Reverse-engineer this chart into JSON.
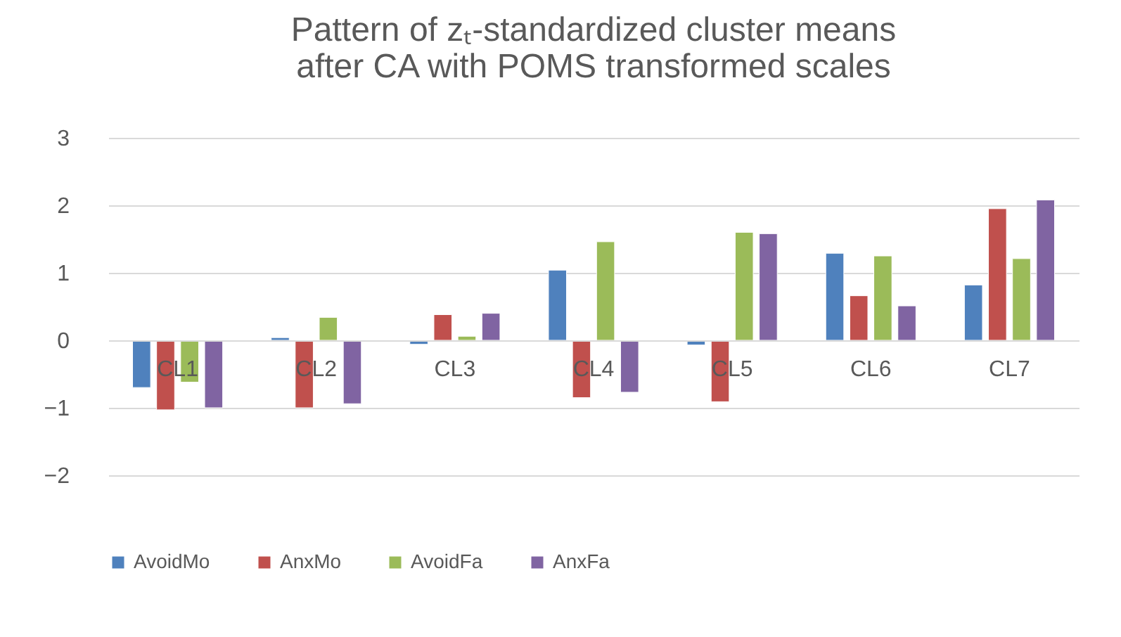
{
  "chart_data": {
    "type": "bar",
    "title": "Pattern of zₜ-standardized cluster means\nafter CA with POMS transformed scales",
    "categories": [
      "CL1",
      "CL2",
      "CL3",
      "CL4",
      "CL5",
      "CL6",
      "CL7"
    ],
    "series": [
      {
        "name": "AvoidMo",
        "color": "#4f81bd",
        "values": [
          -0.7,
          0.04,
          -0.06,
          1.04,
          -0.07,
          1.29,
          0.82
        ]
      },
      {
        "name": "AnxMo",
        "color": "#c0504d",
        "values": [
          -1.03,
          -1.0,
          0.38,
          -0.85,
          -0.91,
          0.66,
          1.95
        ]
      },
      {
        "name": "AvoidFa",
        "color": "#9bbb59",
        "values": [
          -0.62,
          0.34,
          0.06,
          1.46,
          1.6,
          1.25,
          1.21
        ]
      },
      {
        "name": "AnxFa",
        "color": "#8064a2",
        "values": [
          -1.0,
          -0.94,
          0.4,
          -0.77,
          1.58,
          0.51,
          2.08
        ]
      }
    ],
    "ylim": [
      -2,
      3
    ],
    "yticks": [
      -2,
      -1,
      0,
      1,
      2,
      3
    ],
    "grid": "y",
    "legend": "bottom"
  }
}
